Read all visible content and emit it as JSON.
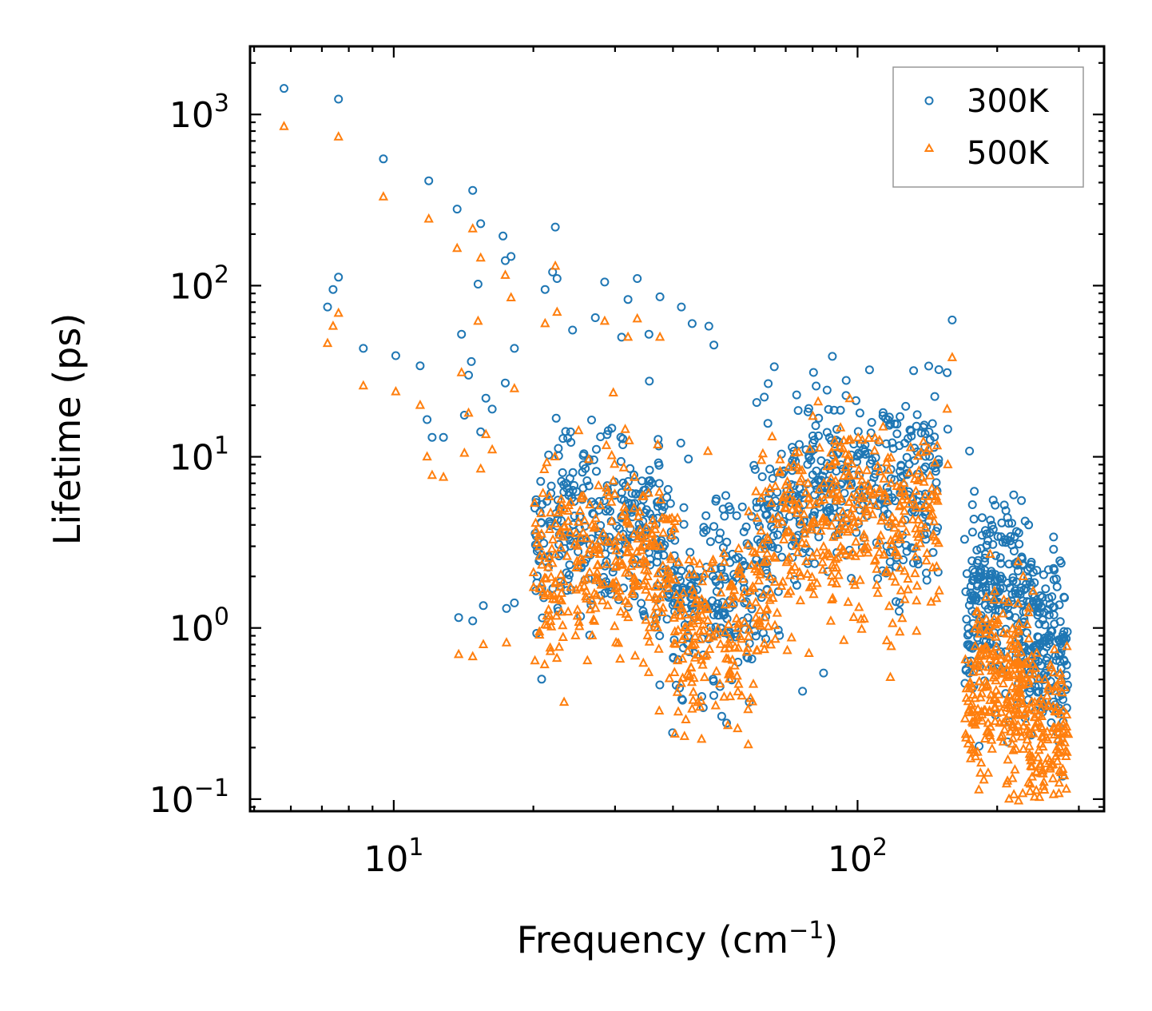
{
  "chart_data": {
    "type": "scatter",
    "title": "",
    "xlabel": "Frequency (cm",
    "xlabel_sup": "−1",
    "xlabel_end": ")",
    "ylabel": "Lifetime (ps)",
    "xscale": "log",
    "yscale": "log",
    "xlim": [
      4.9,
      340
    ],
    "ylim": [
      0.085,
      2500
    ],
    "x_ticks": [
      {
        "value": 10,
        "base": "10",
        "exp": "1"
      },
      {
        "value": 100,
        "base": "10",
        "exp": "2"
      }
    ],
    "y_ticks": [
      {
        "value": 0.1,
        "base": "10",
        "exp": "−1"
      },
      {
        "value": 1,
        "base": "10",
        "exp": "0"
      },
      {
        "value": 10,
        "base": "10",
        "exp": "1"
      },
      {
        "value": 100,
        "base": "10",
        "exp": "2"
      },
      {
        "value": 1000,
        "base": "10",
        "exp": "3"
      }
    ],
    "legend_position": "top-right",
    "series": [
      {
        "name": "300K",
        "marker": "circle",
        "color": "#1f77b4",
        "points": [
          [
            5.8,
            1420
          ],
          [
            7.6,
            1230
          ],
          [
            9.5,
            550
          ],
          [
            11.9,
            410
          ],
          [
            14.8,
            360
          ],
          [
            15.4,
            230
          ],
          [
            17.2,
            195
          ],
          [
            22.3,
            220
          ],
          [
            7.2,
            75
          ],
          [
            7.4,
            95
          ],
          [
            7.6,
            112
          ],
          [
            8.6,
            43
          ],
          [
            10.1,
            39
          ],
          [
            11.4,
            34
          ],
          [
            11.8,
            16.5
          ],
          [
            12.1,
            13
          ],
          [
            12.8,
            13
          ],
          [
            13.7,
            280
          ],
          [
            14.0,
            52
          ],
          [
            14.2,
            17.5
          ],
          [
            14.5,
            30
          ],
          [
            14.7,
            36
          ],
          [
            15.2,
            102
          ],
          [
            15.4,
            14
          ],
          [
            15.8,
            22
          ],
          [
            16.3,
            19
          ],
          [
            17.4,
            140
          ],
          [
            17.9,
            148
          ],
          [
            18.2,
            43
          ],
          [
            17.4,
            27
          ],
          [
            21.2,
            95
          ],
          [
            22.5,
            110
          ],
          [
            22.0,
            120
          ],
          [
            28.5,
            105
          ],
          [
            32.0,
            83
          ],
          [
            33.5,
            110
          ],
          [
            37.5,
            86
          ],
          [
            41.7,
            75
          ],
          [
            24.3,
            55
          ],
          [
            27.2,
            65
          ],
          [
            31.0,
            50
          ],
          [
            35.5,
            52
          ],
          [
            44.0,
            60
          ],
          [
            47.8,
            58
          ],
          [
            49.0,
            45
          ],
          [
            13.8,
            1.15
          ],
          [
            14.8,
            1.1
          ],
          [
            15.6,
            1.35
          ],
          [
            17.5,
            1.3
          ],
          [
            18.2,
            1.4
          ],
          [
            160.0,
            63
          ],
          [
            156.0,
            31
          ],
          [
            156.5,
            14.5
          ],
          [
            128.0,
            8
          ],
          [
            136.0,
            6
          ]
        ]
      },
      {
        "name": "500K",
        "marker": "triangle",
        "color": "#ff7f0e",
        "points": [
          [
            5.8,
            850
          ],
          [
            7.6,
            740
          ],
          [
            9.5,
            330
          ],
          [
            11.9,
            245
          ],
          [
            14.8,
            215
          ],
          [
            13.7,
            165
          ],
          [
            15.4,
            145
          ],
          [
            17.4,
            115
          ],
          [
            17.9,
            85
          ],
          [
            22.3,
            130
          ],
          [
            7.2,
            46
          ],
          [
            7.4,
            58
          ],
          [
            7.6,
            69
          ],
          [
            8.6,
            26
          ],
          [
            10.1,
            24
          ],
          [
            11.4,
            20
          ],
          [
            11.8,
            10
          ],
          [
            12.1,
            7.8
          ],
          [
            12.8,
            7.6
          ],
          [
            14.0,
            31
          ],
          [
            14.2,
            10.5
          ],
          [
            14.5,
            18
          ],
          [
            15.2,
            62
          ],
          [
            15.4,
            8.5
          ],
          [
            15.8,
            13.5
          ],
          [
            16.3,
            11
          ],
          [
            18.2,
            25
          ],
          [
            21.2,
            60
          ],
          [
            22.5,
            70
          ],
          [
            13.8,
            0.7
          ],
          [
            14.8,
            0.68
          ],
          [
            15.6,
            0.8
          ],
          [
            17.5,
            0.82
          ],
          [
            160.0,
            38
          ],
          [
            156.0,
            19
          ],
          [
            156.5,
            9
          ],
          [
            28.5,
            62
          ],
          [
            32.0,
            50
          ],
          [
            33.5,
            64
          ],
          [
            37.5,
            50
          ]
        ]
      }
    ]
  }
}
